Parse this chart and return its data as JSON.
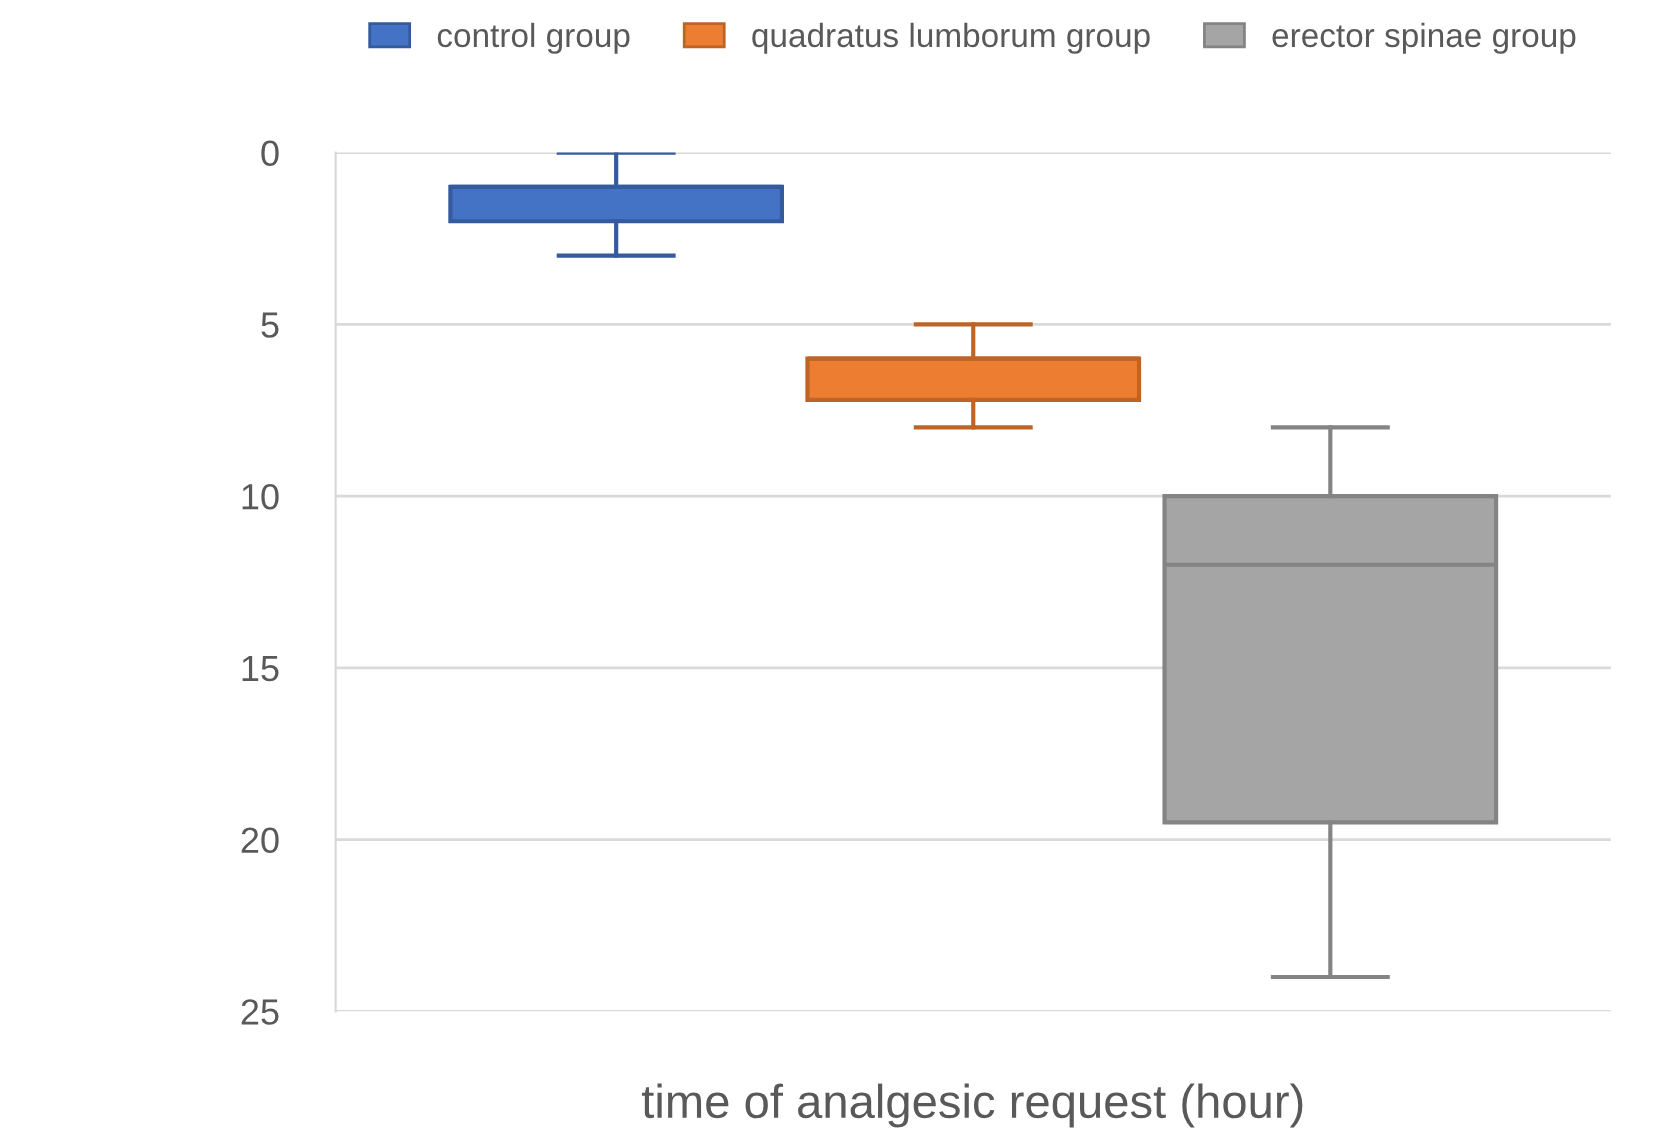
{
  "chart_data": {
    "type": "box",
    "xlabel": "time of analgesic request (hour)",
    "categories": [
      null
    ],
    "series": [
      {
        "name": "control group",
        "color": "#4472c4",
        "boxes": [
          {
            "low": 0,
            "q1": 1,
            "median": 1,
            "q3": 2,
            "high": 3
          }
        ]
      },
      {
        "name": "quadratus lumborum group",
        "color": "#ed7d31",
        "boxes": [
          {
            "low": 5,
            "q1": 6,
            "median": 6,
            "q3": 7.2,
            "high": 8
          }
        ]
      },
      {
        "name": "erector spinae group",
        "color": "#a5a5a5",
        "boxes": [
          {
            "low": 8,
            "q1": 10,
            "median": 12,
            "q3": 19.5,
            "high": 24
          }
        ]
      }
    ],
    "ylim": [
      25,
      0
    ],
    "yticks": [
      0,
      5,
      10,
      15,
      20,
      25
    ],
    "grid": "y",
    "legend": "top"
  }
}
